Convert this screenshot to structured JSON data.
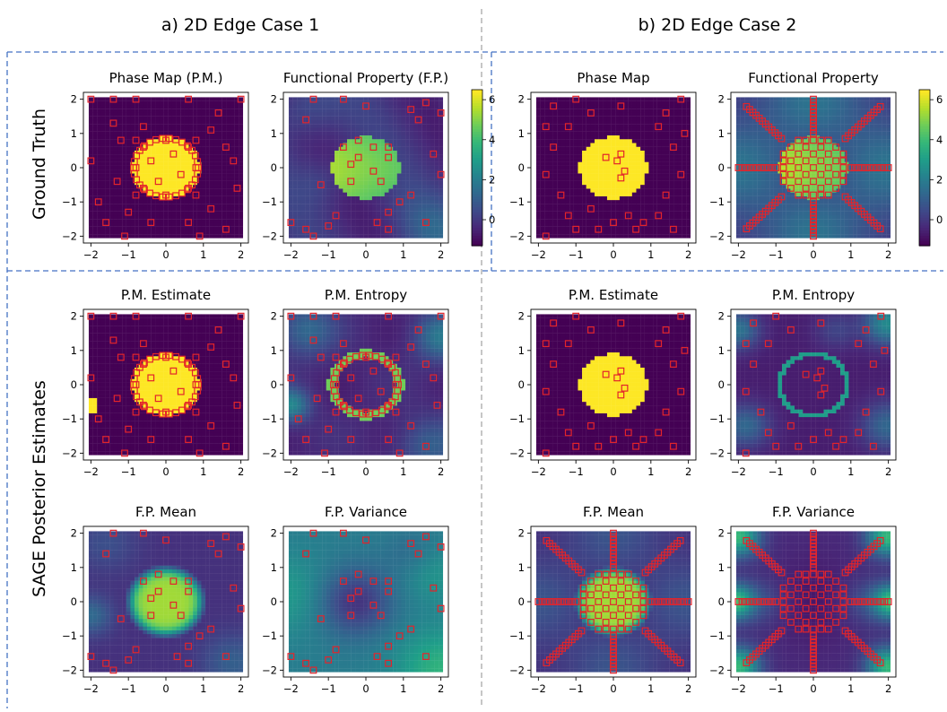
{
  "figure": {
    "case_a_title": "a)  2D Edge Case 1",
    "case_b_title": "b) 2D Edge Case 2",
    "row_label_top": "Ground Truth",
    "row_label_bottom": "SAGE Posterior Estimates"
  },
  "colors": {
    "background_dark": "#440154",
    "phase_yellow": "#fde725",
    "marker_red": "#e3242b",
    "divider_blue": "#4472c4",
    "divider_gray": "#8c8c8c",
    "colormap": "viridis"
  },
  "chart_data": [
    {
      "id": "a_gt_pm",
      "type": "heatmap",
      "title": "Phase Map (P.M.)",
      "field": "disk",
      "sampling": "a_random_disk",
      "xlim": [
        -2.2,
        2.2
      ],
      "ylim": [
        -2.2,
        2.2
      ],
      "xticks": [
        -2,
        -1,
        0,
        1,
        2
      ],
      "yticks": [
        -2,
        -1,
        0,
        1,
        2
      ]
    },
    {
      "id": "a_gt_fp",
      "type": "heatmap",
      "title": "Functional Property (F.P.)",
      "field": "fp_a",
      "sampling": "a_random_sparse",
      "xlim": [
        -2.2,
        2.2
      ],
      "ylim": [
        -2.2,
        2.2
      ],
      "xticks": [
        -2,
        -1,
        0,
        1,
        2
      ],
      "yticks": [
        -2,
        -1,
        0,
        1,
        2
      ],
      "colorbar": {
        "ticks": [
          0,
          2,
          4,
          6
        ],
        "range": [
          -1.3,
          6.5
        ]
      }
    },
    {
      "id": "b_gt_pm",
      "type": "heatmap",
      "title": "Phase Map",
      "field": "disk",
      "sampling": "b_random_sparse",
      "xlim": [
        -2.2,
        2.2
      ],
      "ylim": [
        -2.2,
        2.2
      ],
      "xticks": [
        -2,
        -1,
        0,
        1,
        2
      ],
      "yticks": [
        -2,
        -1,
        0,
        1,
        2
      ]
    },
    {
      "id": "b_gt_fp",
      "type": "heatmap",
      "title": "Functional Property",
      "field": "fp_b",
      "sampling": "b_radial_grid",
      "xlim": [
        -2.2,
        2.2
      ],
      "ylim": [
        -2.2,
        2.2
      ],
      "xticks": [
        -2,
        -1,
        0,
        1,
        2
      ],
      "yticks": [
        -2,
        -1,
        0,
        1,
        2
      ],
      "colorbar": {
        "ticks": [
          0,
          2,
          4,
          6
        ],
        "range": [
          -1.3,
          6.5
        ]
      }
    },
    {
      "id": "a_pm_est",
      "type": "heatmap",
      "title": "P.M. Estimate",
      "field": "disk_edge",
      "sampling": "a_random_disk",
      "xlim": [
        -2.2,
        2.2
      ],
      "ylim": [
        -2.2,
        2.2
      ],
      "xticks": [
        -2,
        -1,
        0,
        1,
        2
      ],
      "yticks": [
        -2,
        -1,
        0,
        1,
        2
      ]
    },
    {
      "id": "a_pm_ent",
      "type": "heatmap",
      "title": "P.M. Entropy",
      "field": "entropy_a",
      "sampling": "a_random_disk",
      "xlim": [
        -2.2,
        2.2
      ],
      "ylim": [
        -2.2,
        2.2
      ],
      "xticks": [
        -2,
        -1,
        0,
        1,
        2
      ],
      "yticks": [
        -2,
        -1,
        0,
        1,
        2
      ]
    },
    {
      "id": "b_pm_est",
      "type": "heatmap",
      "title": "P.M. Estimate",
      "field": "disk",
      "sampling": "b_random_sparse",
      "xlim": [
        -2.2,
        2.2
      ],
      "ylim": [
        -2.2,
        2.2
      ],
      "xticks": [
        -2,
        -1,
        0,
        1,
        2
      ],
      "yticks": [
        -2,
        -1,
        0,
        1,
        2
      ]
    },
    {
      "id": "b_pm_ent",
      "type": "heatmap",
      "title": "P.M. Entropy",
      "field": "entropy_b",
      "sampling": "b_random_sparse",
      "xlim": [
        -2.2,
        2.2
      ],
      "ylim": [
        -2.2,
        2.2
      ],
      "xticks": [
        -2,
        -1,
        0,
        1,
        2
      ],
      "yticks": [
        -2,
        -1,
        0,
        1,
        2
      ]
    },
    {
      "id": "a_fp_mean",
      "type": "heatmap",
      "title": "F.P. Mean",
      "field": "fpmean_a",
      "sampling": "a_random_sparse",
      "xlim": [
        -2.2,
        2.2
      ],
      "ylim": [
        -2.2,
        2.2
      ],
      "xticks": [
        -2,
        -1,
        0,
        1,
        2
      ],
      "yticks": [
        -2,
        -1,
        0,
        1,
        2
      ]
    },
    {
      "id": "a_fp_var",
      "type": "heatmap",
      "title": "F.P. Variance",
      "field": "fpvar_a",
      "sampling": "a_random_sparse",
      "xlim": [
        -2.2,
        2.2
      ],
      "ylim": [
        -2.2,
        2.2
      ],
      "xticks": [
        -2,
        -1,
        0,
        1,
        2
      ],
      "yticks": [
        -2,
        -1,
        0,
        1,
        2
      ]
    },
    {
      "id": "b_fp_mean",
      "type": "heatmap",
      "title": "F.P. Mean",
      "field": "fpmean_b",
      "sampling": "b_radial_grid",
      "xlim": [
        -2.2,
        2.2
      ],
      "ylim": [
        -2.2,
        2.2
      ],
      "xticks": [
        -2,
        -1,
        0,
        1,
        2
      ],
      "yticks": [
        -2,
        -1,
        0,
        1,
        2
      ]
    },
    {
      "id": "b_fp_var",
      "type": "heatmap",
      "title": "F.P. Variance",
      "field": "fpvar_b",
      "sampling": "b_radial_grid",
      "xlim": [
        -2.2,
        2.2
      ],
      "ylim": [
        -2.2,
        2.2
      ],
      "xticks": [
        -2,
        -1,
        0,
        1,
        2
      ],
      "yticks": [
        -2,
        -1,
        0,
        1,
        2
      ]
    }
  ],
  "samples": {
    "a_random_disk": [
      [
        -2,
        2
      ],
      [
        -1.4,
        2
      ],
      [
        -0.8,
        2
      ],
      [
        0.6,
        2
      ],
      [
        1.4,
        1.6
      ],
      [
        2,
        2
      ],
      [
        -1.4,
        1.3
      ],
      [
        -0.6,
        1.2
      ],
      [
        1.2,
        1.1
      ],
      [
        -1.2,
        0.8
      ],
      [
        1.6,
        0.6
      ],
      [
        -2,
        0.2
      ],
      [
        1.8,
        0.2
      ],
      [
        -1.3,
        -0.4
      ],
      [
        1.9,
        -0.6
      ],
      [
        -1.8,
        -1.0
      ],
      [
        -1,
        -1.3
      ],
      [
        1.2,
        -1.2
      ],
      [
        -1.6,
        -1.6
      ],
      [
        -0.4,
        -1.6
      ],
      [
        0.6,
        -1.6
      ],
      [
        1.6,
        -1.8
      ],
      [
        -1.1,
        -2
      ],
      [
        0.9,
        -2
      ],
      [
        0.2,
        0.4
      ],
      [
        0.6,
        0.6
      ],
      [
        -0.4,
        0.2
      ],
      [
        0.4,
        -0.2
      ],
      [
        -0.2,
        -0.4
      ],
      [
        0.8,
        0.8
      ],
      [
        -0.8,
        0.8
      ],
      [
        0.8,
        -0.8
      ],
      [
        -0.8,
        -0.8
      ],
      [
        0,
        0.8
      ],
      [
        0,
        -0.8
      ],
      [
        0.8,
        0
      ],
      [
        -0.8,
        0
      ],
      [
        0.6,
        -0.6
      ],
      [
        -0.6,
        -0.6
      ],
      [
        -0.6,
        0.6
      ]
    ],
    "a_random_sparse": [
      [
        -1.4,
        2
      ],
      [
        -0.6,
        2
      ],
      [
        0,
        1.8
      ],
      [
        1.2,
        1.7
      ],
      [
        1.6,
        1.9
      ],
      [
        2,
        1.6
      ],
      [
        -1.6,
        1.4
      ],
      [
        1.4,
        1.4
      ],
      [
        -0.2,
        0.8
      ],
      [
        0.2,
        0.6
      ],
      [
        0.6,
        0.3
      ],
      [
        -0.4,
        0.1
      ],
      [
        0.2,
        -0.1
      ],
      [
        -0.2,
        0.3
      ],
      [
        0.6,
        0.6
      ],
      [
        -0.6,
        0.6
      ],
      [
        0.4,
        -0.4
      ],
      [
        -0.4,
        -0.4
      ],
      [
        1.8,
        0.4
      ],
      [
        2,
        -0.2
      ],
      [
        1.2,
        -0.8
      ],
      [
        0.9,
        -1.0
      ],
      [
        0.6,
        -1.3
      ],
      [
        0.3,
        -1.6
      ],
      [
        -0.8,
        -1.4
      ],
      [
        -1,
        -1.7
      ],
      [
        -1.6,
        -1.8
      ],
      [
        -2,
        -1.6
      ],
      [
        -1.4,
        -2
      ],
      [
        -1.2,
        -0.5
      ],
      [
        1.6,
        -1.6
      ],
      [
        0.6,
        -1.8
      ]
    ],
    "b_random_sparse": [
      [
        -1.6,
        1.8
      ],
      [
        -1,
        2
      ],
      [
        -0.6,
        1.6
      ],
      [
        0.2,
        1.8
      ],
      [
        1.4,
        1.6
      ],
      [
        1.8,
        2
      ],
      [
        -1.2,
        1.2
      ],
      [
        1.2,
        1.2
      ],
      [
        -1.6,
        0.6
      ],
      [
        1.6,
        0.6
      ],
      [
        -1.8,
        -0.2
      ],
      [
        1.8,
        -0.2
      ],
      [
        -1.4,
        -0.8
      ],
      [
        1.4,
        -0.8
      ],
      [
        -1.2,
        -1.4
      ],
      [
        -0.6,
        -1.2
      ],
      [
        0.4,
        -1.4
      ],
      [
        0.8,
        -1.6
      ],
      [
        1.2,
        -1.4
      ],
      [
        -1,
        -1.8
      ],
      [
        -0.4,
        -1.8
      ],
      [
        0,
        -1.6
      ],
      [
        0.6,
        -1.8
      ],
      [
        1.6,
        -1.8
      ],
      [
        -1.8,
        -2
      ],
      [
        0.2,
        0.4
      ],
      [
        0.1,
        0.2
      ],
      [
        -0.2,
        0.3
      ],
      [
        0.3,
        -0.1
      ],
      [
        0.2,
        -0.3
      ],
      [
        -1.8,
        1.2
      ],
      [
        1.9,
        1.0
      ]
    ]
  }
}
